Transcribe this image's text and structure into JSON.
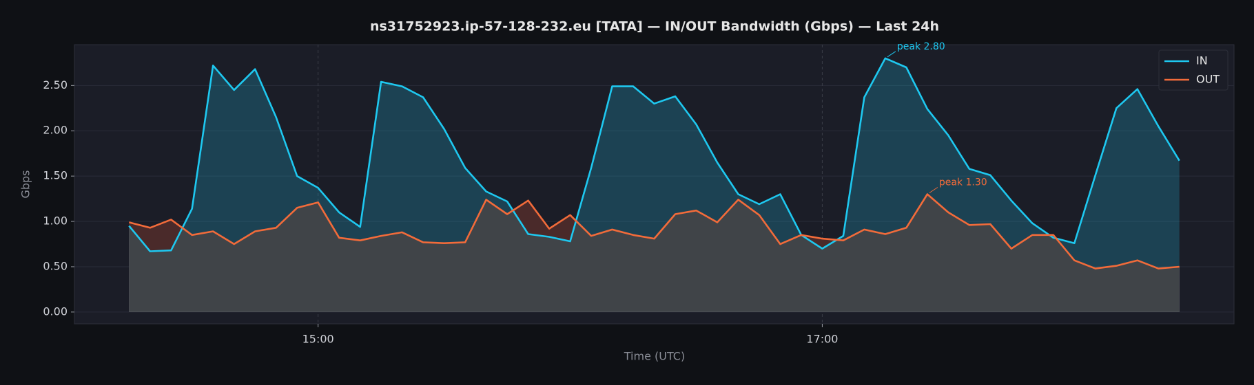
{
  "chart_data": {
    "type": "line",
    "title": "ns31752923.ip-57-128-232.eu [TATA] — IN/OUT Bandwidth (Gbps) — Last 24h",
    "xlabel": "Time (UTC)",
    "ylabel": "Gbps",
    "x": [
      "14:15",
      "14:20",
      "14:25",
      "14:30",
      "14:35",
      "14:40",
      "14:45",
      "14:50",
      "14:55",
      "15:00",
      "15:05",
      "15:10",
      "15:15",
      "15:20",
      "15:25",
      "15:30",
      "15:35",
      "15:40",
      "15:45",
      "15:50",
      "15:55",
      "16:00",
      "16:05",
      "16:10",
      "16:15",
      "16:20",
      "16:25",
      "16:30",
      "16:35",
      "16:40",
      "16:45",
      "16:50",
      "16:55",
      "17:00",
      "17:05",
      "17:10",
      "17:15",
      "17:20",
      "17:25",
      "17:30",
      "17:35",
      "17:40",
      "17:45",
      "17:50",
      "17:55",
      "18:00",
      "18:05",
      "18:10",
      "18:15",
      "18:20",
      "18:25"
    ],
    "series": [
      {
        "name": "IN",
        "color": "#1ec8f0",
        "values": [
          0.95,
          0.67,
          0.68,
          1.14,
          2.72,
          2.45,
          2.68,
          2.15,
          1.5,
          1.37,
          1.1,
          0.94,
          2.54,
          2.49,
          2.37,
          2.02,
          1.59,
          1.33,
          1.22,
          0.86,
          0.83,
          0.78,
          1.59,
          2.49,
          2.49,
          2.3,
          2.38,
          2.07,
          1.65,
          1.3,
          1.19,
          1.3,
          0.85,
          0.7,
          0.84,
          2.37,
          2.8,
          2.7,
          2.24,
          1.95,
          1.58,
          1.51,
          1.23,
          0.98,
          0.82,
          0.76,
          1.51,
          2.25,
          2.46,
          2.05,
          1.67
        ]
      },
      {
        "name": "OUT",
        "color": "#f26b3a",
        "values": [
          0.99,
          0.93,
          1.02,
          0.85,
          0.89,
          0.75,
          0.89,
          0.93,
          1.15,
          1.21,
          0.82,
          0.79,
          0.84,
          0.88,
          0.77,
          0.76,
          0.77,
          1.24,
          1.08,
          1.23,
          0.92,
          1.07,
          0.84,
          0.91,
          0.85,
          0.81,
          1.08,
          1.12,
          0.99,
          1.24,
          1.07,
          0.75,
          0.85,
          0.81,
          0.79,
          0.91,
          0.86,
          0.93,
          1.3,
          1.1,
          0.96,
          0.97,
          0.7,
          0.85,
          0.85,
          0.57,
          0.48,
          0.51,
          0.57,
          0.48,
          0.5
        ]
      }
    ],
    "annotations": [
      {
        "text": "peak 2.80",
        "x": "17:15",
        "y": 2.8,
        "series": 0
      },
      {
        "text": "peak 1.30",
        "x": "17:25",
        "y": 1.3,
        "series": 1
      }
    ],
    "xlim": [
      "14:02",
      "18:38"
    ],
    "xticks": [
      "15:00",
      "17:00"
    ],
    "ylim": [
      -0.13,
      2.95
    ],
    "yticks": [
      {
        "value": 0,
        "label": "0.00"
      },
      {
        "value": 0.5,
        "label": "0.50"
      },
      {
        "value": 1,
        "label": "1.00"
      },
      {
        "value": 1.5,
        "label": "1.50"
      },
      {
        "value": 2,
        "label": "2.00"
      },
      {
        "value": 2.5,
        "label": "2.50"
      }
    ],
    "grid": true,
    "legend": "upper right"
  }
}
